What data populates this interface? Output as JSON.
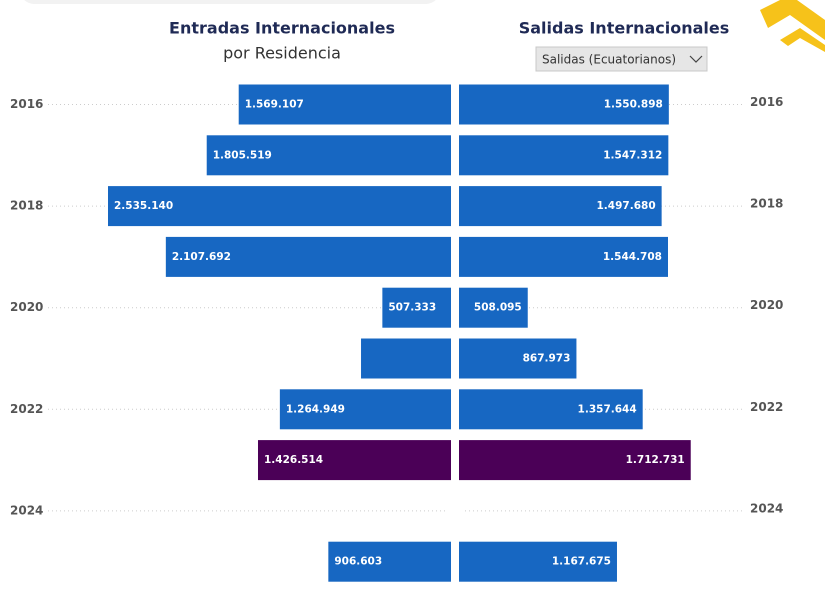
{
  "chart_data": {
    "type": "butterfly",
    "left_title": "Entradas Internacionales",
    "left_subtitle": "por Residencia",
    "right_title": "Salidas Internacionales",
    "dropdown": "Salidas (Ecuatorianos)",
    "categories": [
      "2016",
      null,
      "2018",
      null,
      "2020",
      null,
      "2022",
      null,
      "2024",
      null
    ],
    "series": [
      {
        "side": "left",
        "values": [
          1569107,
          1805519,
          2535140,
          2107692,
          507333,
          665000,
          1264949,
          1426514,
          null,
          906603
        ],
        "value_labels": [
          "1.569.107",
          "1.805.519",
          "2.535.140",
          "2.107.692",
          "507.333",
          null,
          "1.264.949",
          "1.426.514",
          null,
          "906.603"
        ],
        "colors": [
          "#1767c2",
          "#1767c2",
          "#1767c2",
          "#1767c2",
          "#1767c2",
          "#1767c2",
          "#1767c2",
          "#4b0057",
          "#1767c2",
          "#1767c2"
        ]
      },
      {
        "side": "right",
        "values": [
          1550898,
          1547312,
          1497680,
          1544708,
          508095,
          867973,
          1357644,
          1712731,
          null,
          1167675
        ],
        "value_labels": [
          "1.550.898",
          "1.547.312",
          "1.497.680",
          "1.544.708",
          "508.095",
          "867.973",
          "1.357.644",
          "1.712.731",
          null,
          "1.167.675"
        ],
        "colors": [
          "#1767c2",
          "#1767c2",
          "#1767c2",
          "#1767c2",
          "#1767c2",
          "#1767c2",
          "#1767c2",
          "#4b0057",
          "#1767c2",
          "#1767c2"
        ]
      }
    ]
  }
}
